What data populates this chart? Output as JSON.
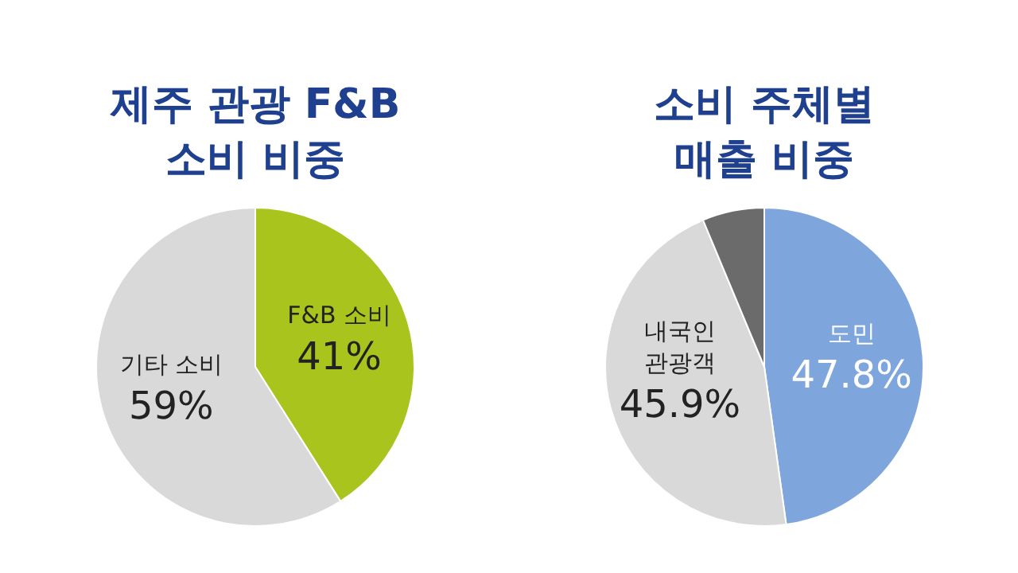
{
  "chart_data": [
    {
      "type": "pie",
      "title": "제주 관광 F&B\n소비 비중",
      "categories": [
        "F&B 소비",
        "기타 소비"
      ],
      "values": [
        41,
        59
      ],
      "colors": [
        "#a9c41c",
        "#d9d9d9"
      ],
      "value_labels": [
        "41%",
        "59%"
      ]
    },
    {
      "type": "pie",
      "title": "소비 주체별\n매출 비중",
      "categories": [
        "도민",
        "내국인\n관광객",
        null
      ],
      "values": [
        47.8,
        45.9,
        6.3
      ],
      "colors": [
        "#7fa6dc",
        "#d9d9d9",
        "#6b6b6b"
      ],
      "value_labels": [
        "47.8%",
        "45.9%",
        null
      ]
    }
  ]
}
